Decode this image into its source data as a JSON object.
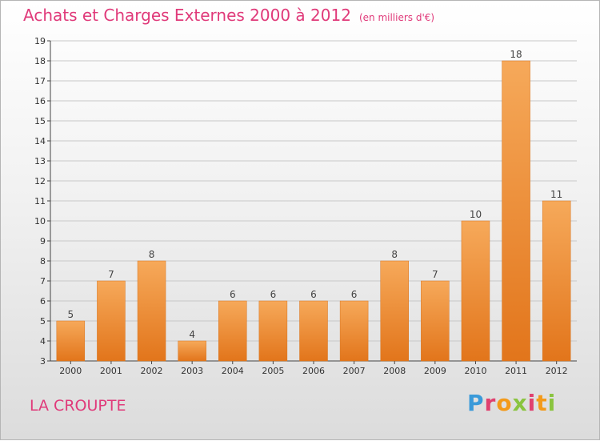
{
  "header": {
    "title": "Achats et Charges Externes 2000 à 2012",
    "subtitle": "(en milliers d'€)"
  },
  "footer": {
    "place": "LA CROUPTE",
    "logo_letters": [
      "P",
      "r",
      "o",
      "x",
      "i",
      "t",
      "i"
    ]
  },
  "colors": {
    "title": "#e03a7a",
    "bar_light": "#f6a95a",
    "bar_dark": "#e2751b",
    "grid": "#c8c8c8",
    "axis": "#444444"
  },
  "chart_data": {
    "type": "bar",
    "categories": [
      "2000",
      "2001",
      "2002",
      "2003",
      "2004",
      "2005",
      "2006",
      "2007",
      "2008",
      "2009",
      "2010",
      "2011",
      "2012"
    ],
    "values": [
      5,
      7,
      8,
      4,
      6,
      6,
      6,
      6,
      8,
      7,
      10,
      18,
      11
    ],
    "ylim": [
      3,
      19
    ],
    "yticks": [
      3,
      4,
      5,
      6,
      7,
      8,
      9,
      10,
      11,
      12,
      13,
      14,
      15,
      16,
      17,
      18,
      19
    ],
    "grid": true,
    "data_labels": true
  }
}
